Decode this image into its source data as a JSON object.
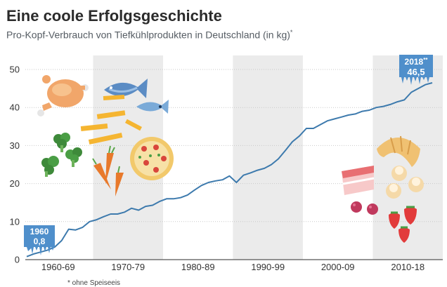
{
  "chart_data": {
    "type": "line",
    "title": "Eine coole Erfolgsgeschichte",
    "subtitle": "Pro-Kopf-Verbrauch von Tiefkühlprodukten in Deutschland (in kg)",
    "subtitle_marker": "*",
    "footnote": "* ohne Speiseeis",
    "ylim": [
      0,
      50
    ],
    "y_ticks": [
      "0",
      "10",
      "20",
      "30",
      "40",
      "50"
    ],
    "decade_labels": [
      "1960-69",
      "1970-79",
      "1980-89",
      "1990-99",
      "2000-09",
      "2010-18"
    ],
    "x": [
      1960,
      1961,
      1962,
      1963,
      1964,
      1965,
      1966,
      1967,
      1968,
      1969,
      1970,
      1971,
      1972,
      1973,
      1974,
      1975,
      1976,
      1977,
      1978,
      1979,
      1980,
      1981,
      1982,
      1983,
      1984,
      1985,
      1986,
      1987,
      1988,
      1989,
      1990,
      1991,
      1992,
      1993,
      1994,
      1995,
      1996,
      1997,
      1998,
      1999,
      2000,
      2001,
      2002,
      2003,
      2004,
      2005,
      2006,
      2007,
      2008,
      2009,
      2010,
      2011,
      2012,
      2013,
      2014,
      2015,
      2016,
      2017,
      2018
    ],
    "values": [
      0.8,
      1.5,
      2.0,
      2.5,
      3.3,
      5.0,
      8.0,
      7.8,
      8.5,
      10.0,
      10.5,
      11.3,
      12.0,
      12.0,
      12.5,
      13.5,
      13.0,
      14.0,
      14.3,
      15.3,
      16.0,
      16.0,
      16.3,
      17.0,
      18.3,
      19.5,
      20.3,
      20.7,
      21.0,
      22.0,
      20.3,
      22.2,
      22.8,
      23.5,
      24.0,
      25.0,
      26.5,
      28.7,
      31.0,
      32.5,
      34.5,
      34.5,
      35.5,
      36.5,
      37.0,
      37.5,
      38.0,
      38.3,
      39.0,
      39.3,
      40.0,
      40.3,
      40.8,
      41.5,
      42.0,
      44.0,
      45.0,
      46.0,
      46.5
    ],
    "start_callout": {
      "year": "1960",
      "value": "0,8"
    },
    "end_callout": {
      "year": "2018",
      "marker": "**",
      "value": "46,5"
    },
    "line_color": "#3d7aad",
    "band_color": "#ebebeb",
    "callout_color": "#4f8fcb"
  },
  "illustrations": [
    "chicken-icon",
    "fish-icon",
    "fries-icon",
    "broccoli-icon",
    "carrot-icon",
    "pizza-icon",
    "croissant-icon",
    "cake-icon",
    "cream-puff-icon",
    "raspberry-icon",
    "strawberry-icon"
  ]
}
